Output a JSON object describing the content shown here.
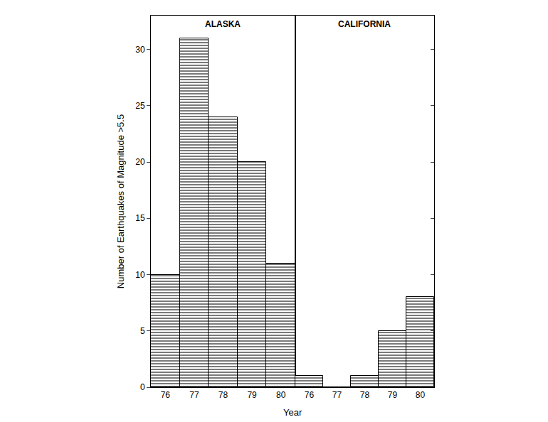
{
  "chart_data": {
    "type": "bar",
    "x_label": "Year",
    "y_label": "Number of Earthquakes of Magnitude >5.5",
    "ylim": [
      0,
      33
    ],
    "yticks": [
      0,
      5,
      10,
      15,
      20,
      25,
      30
    ],
    "color": "#7a7a7a",
    "panels": [
      {
        "title": "ALASKA",
        "categories": [
          "76",
          "77",
          "78",
          "79",
          "80"
        ],
        "values": [
          10,
          31,
          24,
          20,
          11
        ]
      },
      {
        "title": "CALIFORNIA",
        "categories": [
          "76",
          "77",
          "78",
          "79",
          "80"
        ],
        "values": [
          1,
          0,
          1,
          5,
          8
        ]
      }
    ]
  }
}
